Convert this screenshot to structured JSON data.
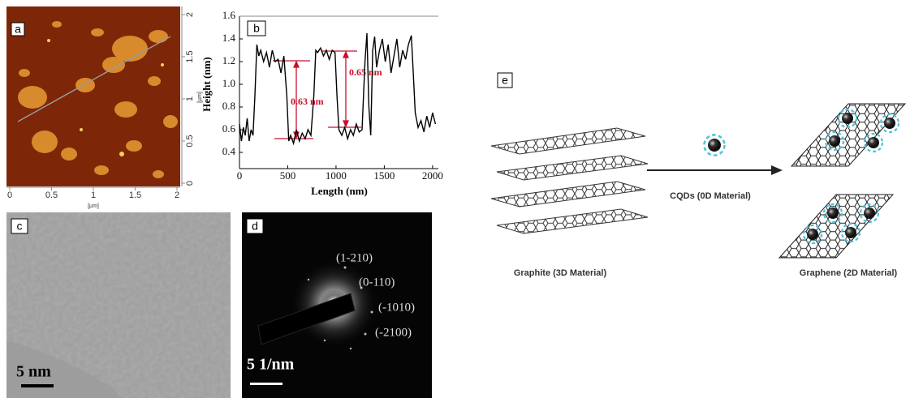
{
  "chart_data": [
    {
      "type": "image",
      "label": "a",
      "xlabel": "[µm]",
      "ylabel": "[µm]",
      "xlim": [
        0,
        2
      ],
      "xticks": [
        0,
        0.5,
        1,
        1.5,
        2
      ],
      "ylim": [
        0,
        2
      ],
      "yticks": [
        0,
        0.5,
        1,
        1.5,
        2
      ]
    },
    {
      "type": "line",
      "label": "b",
      "xlabel": "Length (nm)",
      "ylabel": "Height (nm)",
      "xlim": [
        0,
        2060
      ],
      "xticks": [
        0,
        500,
        1000,
        1500,
        2000
      ],
      "ylim": [
        0.4,
        1.6
      ],
      "yticks": [
        0.4,
        0.6,
        0.8,
        {
          "value": 1,
          "label": "1.0"
        },
        1.2,
        1.4,
        1.6
      ],
      "color": "#000000",
      "x": [
        0,
        20,
        40,
        60,
        80,
        100,
        120,
        140,
        160,
        180,
        200,
        220,
        250,
        280,
        310,
        340,
        370,
        400,
        430,
        460,
        490,
        510,
        530,
        560,
        590,
        620,
        650,
        680,
        710,
        740,
        770,
        790,
        810,
        840,
        870,
        900,
        930,
        960,
        990,
        1010,
        1030,
        1060,
        1090,
        1120,
        1150,
        1180,
        1210,
        1240,
        1270,
        1300,
        1320,
        1340,
        1360,
        1380,
        1400,
        1420,
        1450,
        1480,
        1510,
        1540,
        1570,
        1600,
        1630,
        1660,
        1690,
        1720,
        1750,
        1780,
        1800,
        1820,
        1850,
        1880,
        1910,
        1940,
        1970,
        2000,
        2030
      ],
      "values": [
        0.65,
        0.5,
        0.62,
        0.55,
        0.7,
        0.5,
        0.6,
        0.55,
        0.9,
        1.35,
        1.25,
        1.3,
        1.2,
        1.28,
        1.15,
        1.3,
        1.2,
        1.22,
        1.1,
        1.25,
        0.9,
        0.5,
        0.55,
        0.48,
        0.6,
        0.5,
        0.57,
        0.52,
        0.6,
        0.55,
        0.9,
        1.3,
        1.28,
        1.32,
        1.25,
        1.3,
        1.22,
        1.3,
        1.28,
        0.9,
        0.6,
        0.55,
        0.62,
        0.52,
        0.6,
        0.55,
        0.65,
        0.58,
        0.6,
        1.2,
        1.45,
        0.8,
        0.55,
        1.3,
        1.42,
        1.15,
        1.3,
        1.4,
        1.2,
        1.35,
        1.1,
        1.25,
        1.4,
        1.15,
        1.3,
        1.22,
        1.35,
        1.43,
        1.1,
        0.75,
        0.62,
        0.68,
        0.58,
        0.72,
        0.62,
        0.75,
        0.65
      ],
      "annotations": [
        "0.63 nm",
        "0.65 nm"
      ]
    }
  ],
  "panels": {
    "c": {
      "label": "c",
      "scale_bar": "5 nm"
    },
    "d": {
      "label": "d",
      "scale_bar": "5 1/nm",
      "spots": [
        "(1-210)",
        "(0-110)",
        "(-1010)",
        "(-2100)"
      ]
    },
    "e": {
      "label": "e",
      "arrow_label": "CQDs (0D Material)",
      "left_caption": "Graphite (3D Material)",
      "right_caption": "Graphene (2D Material)"
    }
  }
}
